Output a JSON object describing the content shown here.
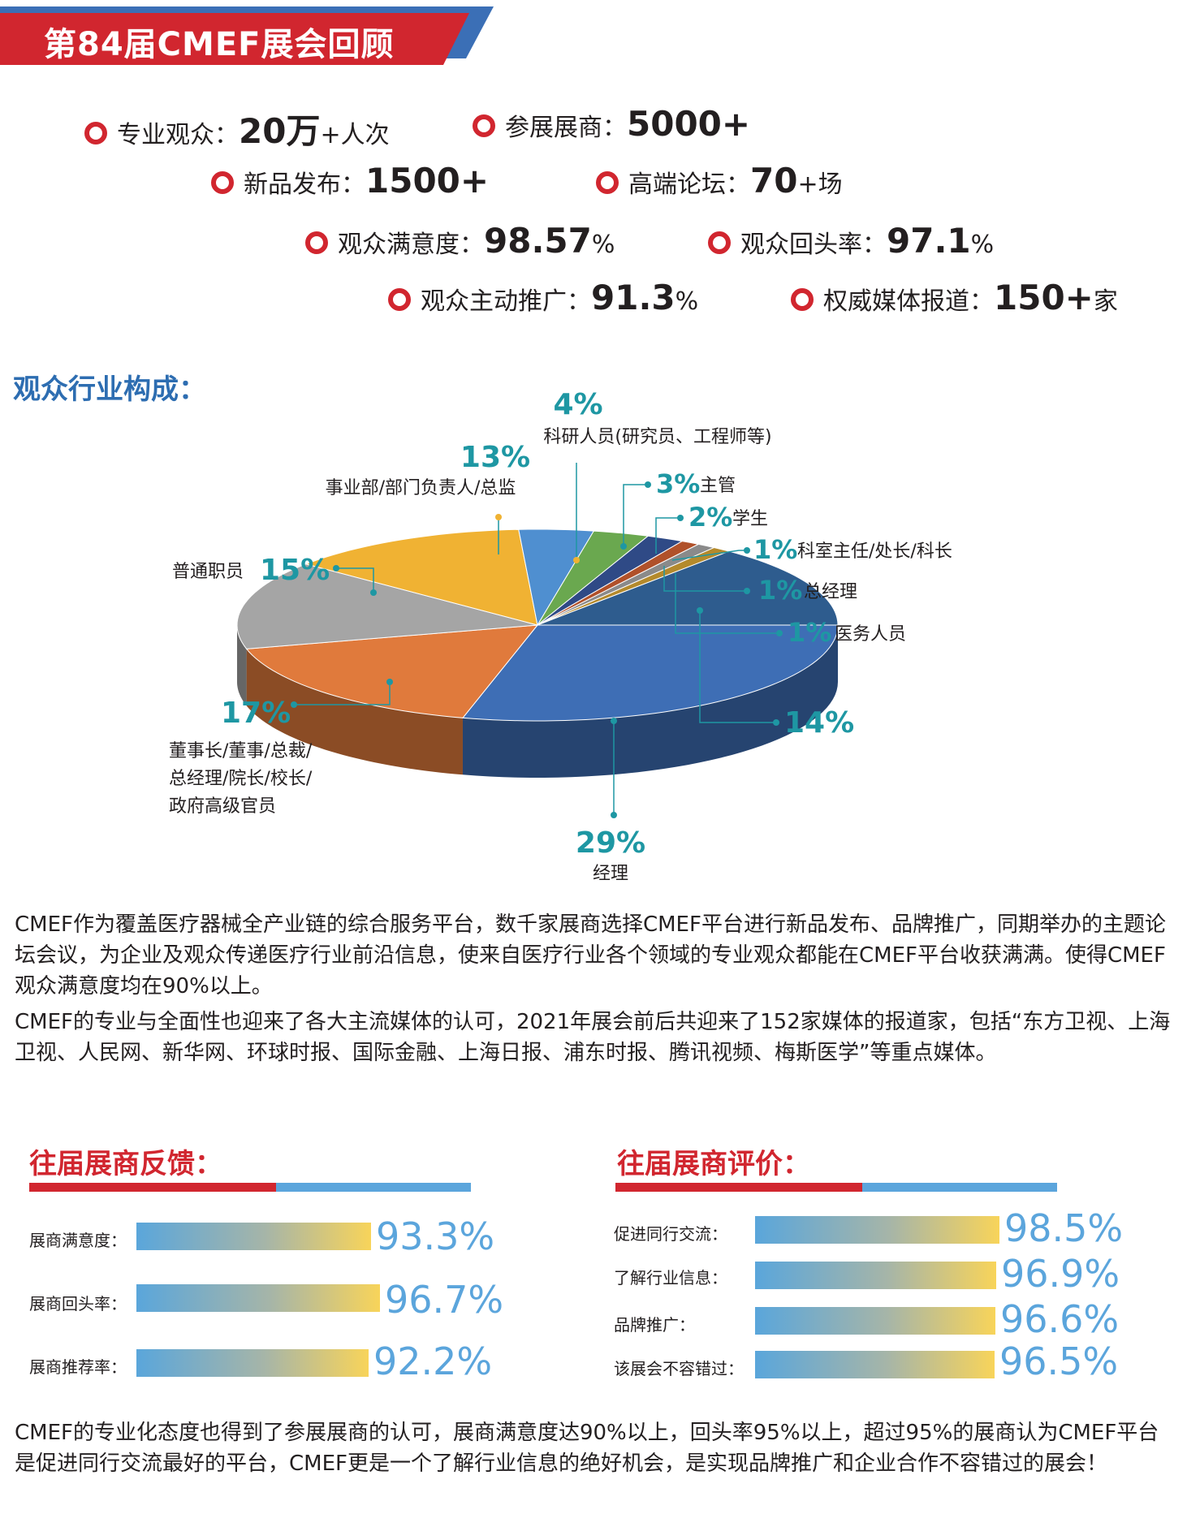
{
  "header": {
    "title": "第84届CMEF展会回顾"
  },
  "colors": {
    "red": "#d1262f",
    "blue": "#5ba5dc",
    "teal": "#1e97a3"
  },
  "stats": [
    {
      "label": "专业观众：",
      "value": "20万",
      "suffix": "+人次"
    },
    {
      "label": "参展展商：",
      "value": "5000+",
      "suffix": ""
    },
    {
      "label": "新品发布：",
      "value": "1500+",
      "suffix": ""
    },
    {
      "label": "高端论坛：",
      "value": "70",
      "suffix": "+场"
    },
    {
      "label": "观众满意度：",
      "value": "98.57",
      "suffix": "%"
    },
    {
      "label": "观众回头率：",
      "value": "97.1",
      "suffix": "%"
    },
    {
      "label": "观众主动推广：",
      "value": "91.3",
      "suffix": "%"
    },
    {
      "label": "权威媒体报道：",
      "value": "150+",
      "suffix": "家"
    }
  ],
  "audience_section": {
    "title": "观众行业构成："
  },
  "chart_data": {
    "type": "pie",
    "title": "",
    "slices": [
      {
        "label": "经理",
        "value": 29,
        "display": "29%",
        "color": "#3e6eb5"
      },
      {
        "label": "董事长/董事/总裁/总经理/院长/校长/政府高级官员",
        "value": 17,
        "display": "17%",
        "color": "#e07a3c"
      },
      {
        "label": "普通职员",
        "value": 15,
        "display": "15%",
        "color": "#a5a5a5"
      },
      {
        "label": "事业部/部门负责人/总监",
        "value": 13,
        "display": "13%",
        "color": "#f0b233"
      },
      {
        "label": "科研人员(研究员、工程师等)",
        "value": 4,
        "display": "4%",
        "color": "#4f8fd0"
      },
      {
        "label": "主管",
        "value": 3,
        "display": "3%",
        "color": "#6aa84f"
      },
      {
        "label": "学生",
        "value": 2,
        "display": "2%",
        "color": "#2f4a86"
      },
      {
        "label": "科室主任/处长/科长",
        "value": 1,
        "display": "1%",
        "color": "#b0512a"
      },
      {
        "label": "总经理",
        "value": 1,
        "display": "1%",
        "color": "#8a8a8a"
      },
      {
        "label": "医务人员",
        "value": 1,
        "display": "1%",
        "color": "#b48a2c"
      },
      {
        "label": "",
        "value": 14,
        "display": "14%",
        "color": "#2e5c8e"
      }
    ]
  },
  "pie_labels": {
    "manager": {
      "pct": "29%",
      "name": "经理"
    },
    "chairman": {
      "pct": "17%",
      "lines": [
        "董事长/董事/总裁/",
        "总经理/院长/校长/",
        "政府高级官员"
      ]
    },
    "staff": {
      "pct": "15%",
      "name": "普通职员"
    },
    "director": {
      "pct": "13%",
      "name": "事业部/部门负责人/总监"
    },
    "research": {
      "pct": "4%",
      "name": "科研人员(研究员、工程师等)"
    },
    "supervisor": {
      "pct": "3%",
      "name": "主管"
    },
    "student": {
      "pct": "2%",
      "name": "学生"
    },
    "section_chief": {
      "pct": "1%",
      "name": "科室主任/处长/科长"
    },
    "gm": {
      "pct": "1%",
      "name": "总经理"
    },
    "medical": {
      "pct": "1%",
      "name": "医务人员"
    },
    "other": {
      "pct": "14%"
    }
  },
  "paragraphs": {
    "p1": "CMEF作为覆盖医疗器械全产业链的综合服务平台，数千家展商选择CMEF平台进行新品发布、品牌推广，同期举办的主题论坛会议，为企业及观众传递医疗行业前沿信息，使来自医疗行业各个领域的专业观众都能在CMEF平台收获满满。使得CMEF观众满意度均在90%以上。",
    "p2": "CMEF的专业与全面性也迎来了各大主流媒体的认可，2021年展会前后共迎来了152家媒体的报道家，包括“东方卫视、上海卫视、人民网、新华网、环球时报、国际金融、上海日报、浦东时报、腾讯视频、梅斯医学”等重点媒体。",
    "p3": "CMEF的专业化态度也得到了参展展商的认可，展商满意度达90%以上，回头率95%以上，超过95%的展商认为CMEF平台是促进同行交流最好的平台，CMEF更是一个了解行业信息的绝好机会，是实现品牌推广和企业合作不容错过的展会！"
  },
  "feedback": {
    "title": "往届展商反馈：",
    "items": [
      {
        "label": "展商满意度：",
        "value": 93.3,
        "display": "93.3%"
      },
      {
        "label": "展商回头率：",
        "value": 96.7,
        "display": "96.7%"
      },
      {
        "label": "展商推荐率：",
        "value": 92.2,
        "display": "92.2%"
      }
    ]
  },
  "evaluation": {
    "title": "往届展商评价：",
    "items": [
      {
        "label": "促进同行交流：",
        "value": 98.5,
        "display": "98.5%"
      },
      {
        "label": "了解行业信息：",
        "value": 96.9,
        "display": "96.9%"
      },
      {
        "label": "品牌推广：",
        "value": 96.6,
        "display": "96.6%"
      },
      {
        "label": "该展会不容错过：",
        "value": 96.5,
        "display": "96.5%"
      }
    ]
  }
}
